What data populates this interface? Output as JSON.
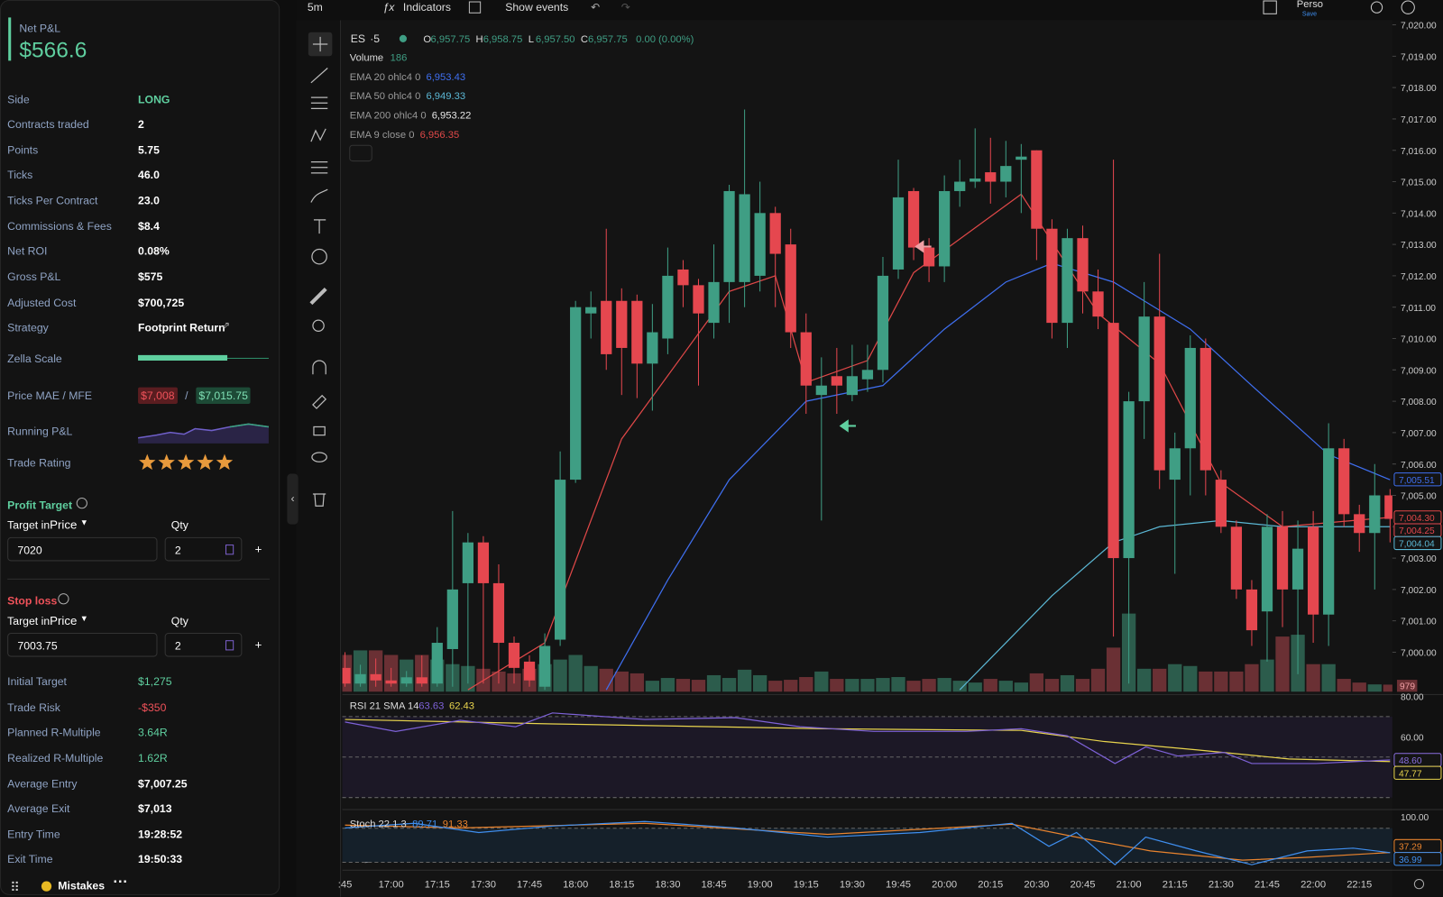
{
  "panel": {
    "net_pnl_label": "Net P&L",
    "net_pnl": "$566.6",
    "stats": [
      {
        "label": "Side",
        "value": "LONG",
        "color": "#5fcf9f"
      },
      {
        "label": "Contracts traded",
        "value": "2"
      },
      {
        "label": "Points",
        "value": "5.75"
      },
      {
        "label": "Ticks",
        "value": "46.0"
      },
      {
        "label": "Ticks Per Contract",
        "value": "23.0"
      },
      {
        "label": "Commissions & Fees",
        "value": "$8.4"
      },
      {
        "label": "Net ROI",
        "value": "0.08%"
      },
      {
        "label": "Gross P&L",
        "value": "$575"
      },
      {
        "label": "Adjusted Cost",
        "value": "$700,725"
      },
      {
        "label": "Strategy",
        "value": "Footprint Return"
      }
    ],
    "zella_scale": {
      "label": "Zella Scale",
      "score": 68
    },
    "mae_mfe": {
      "label": "Price MAE / MFE",
      "mae": "$7,008",
      "sep": "/",
      "mfe": "$7,015.75"
    },
    "running_pnl": {
      "label": "Running P&L"
    },
    "trade_rating": {
      "label": "Trade Rating",
      "stars": 5
    },
    "profit_target": {
      "title": "Profit Target",
      "mode_prefix": "Target in",
      "mode": "Price",
      "qty_label": "Qty",
      "price": "7020",
      "qty": "2",
      "color": "#5fcf9f"
    },
    "stop_loss": {
      "title": "Stop loss",
      "mode_prefix": "Target in",
      "mode": "Price",
      "qty_label": "Qty",
      "price": "7003.75",
      "qty": "2",
      "color": "#f0525a"
    },
    "results": [
      {
        "label": "Initial Target",
        "value": "$1,275",
        "color": "#5fcf9f"
      },
      {
        "label": "Trade Risk",
        "value": "-$350",
        "color": "#f0525a"
      },
      {
        "label": "Planned R-Multiple",
        "value": "3.64R",
        "color": "#5fcf9f"
      },
      {
        "label": "Realized R-Multiple",
        "value": "1.62R",
        "color": "#5fcf9f"
      },
      {
        "label": "Average Entry",
        "value": "$7,007.25"
      },
      {
        "label": "Average Exit",
        "value": "$7,013"
      },
      {
        "label": "Entry Time",
        "value": "19:28:52"
      },
      {
        "label": "Exit Time",
        "value": "19:50:33"
      }
    ],
    "footer": {
      "label": "Mistakes"
    }
  },
  "toolbar": {
    "interval": "5m",
    "indicators": "Indicators",
    "events": "Show events",
    "layout": "Perso",
    "save": "Save"
  },
  "legend": {
    "symbol": "ES",
    "interval": "·5",
    "ohlc": [
      {
        "k": "O",
        "v": "6,957.75"
      },
      {
        "k": "H",
        "v": "6,958.75"
      },
      {
        "k": "L",
        "v": "6,957.50"
      },
      {
        "k": "C",
        "v": "6,957.75"
      }
    ],
    "change": "0.00 (0.00%)",
    "volume_label": "Volume",
    "volume_value": "186"
  },
  "emas": [
    {
      "label": "EMA 20 ohlc4 0",
      "value": "6,953.43",
      "color": "#3f6ff0",
      "points": [
        [
          17,
          6998.8
        ],
        [
          21,
          7002.3
        ],
        [
          25,
          7005.5
        ],
        [
          30,
          7008.0
        ],
        [
          35,
          7008.5
        ],
        [
          39,
          7010.3
        ],
        [
          43,
          7011.8
        ],
        [
          46,
          7012.4
        ],
        [
          50,
          7011.8
        ],
        [
          55,
          7010.3
        ],
        [
          59,
          7008.5
        ],
        [
          64,
          7006.3
        ],
        [
          68,
          7005.5
        ]
      ]
    },
    {
      "label": "EMA 50 ohlc4 0",
      "value": "6,949.33",
      "color": "#5bb7d4",
      "points": [
        [
          40,
          6998.8
        ],
        [
          46,
          7001.8
        ],
        [
          50,
          7003.5
        ],
        [
          53,
          7004.0
        ],
        [
          57,
          7004.2
        ],
        [
          61,
          7004.0
        ],
        [
          68,
          7004.0
        ]
      ]
    },
    {
      "label": "EMA 200 ohlc4 0",
      "value": "6,953.22",
      "color": "#e8e8e8",
      "points": []
    },
    {
      "label": "EMA 9 close 0",
      "value": "6,956.35",
      "color": "#e04848",
      "points": [
        [
          8,
          6998.8
        ],
        [
          13,
          7000.3
        ],
        [
          18,
          7006.8
        ],
        [
          25,
          7011.5
        ],
        [
          28,
          7012.0
        ],
        [
          30,
          7008.6
        ],
        [
          34,
          7009.3
        ],
        [
          37,
          7012.1
        ],
        [
          44,
          7014.6
        ],
        [
          49,
          7010.8
        ],
        [
          53,
          7009.2
        ],
        [
          57,
          7005.4
        ],
        [
          61,
          7004.0
        ],
        [
          68,
          7004.3
        ]
      ]
    }
  ],
  "candles": [
    [
      6999.5,
      7000.0,
      6998.9,
      6999.0
    ],
    [
      6999.0,
      6999.6,
      6998.9,
      6999.3
    ],
    [
      6999.3,
      6999.8,
      6998.9,
      6999.1
    ],
    [
      6999.1,
      6999.5,
      6998.9,
      6999.0
    ],
    [
      6999.0,
      6999.4,
      6998.9,
      6999.2
    ],
    [
      6999.2,
      6999.9,
      6998.9,
      6999.0
    ],
    [
      6999.0,
      7000.8,
      6998.9,
      7000.3
    ],
    [
      7000.1,
      7004.5,
      6998.9,
      7002.0
    ],
    [
      7002.2,
      7003.8,
      6999.0,
      7003.5
    ],
    [
      7003.5,
      7003.7,
      6999.0,
      7002.2
    ],
    [
      7002.2,
      7002.8,
      6999.0,
      7000.3
    ],
    [
      7000.3,
      7000.5,
      6999.0,
      6999.5
    ],
    [
      6999.7,
      6999.9,
      6998.9,
      6999.1
    ],
    [
      6998.9,
      7000.6,
      6998.8,
      7000.2
    ],
    [
      7000.4,
      7006.4,
      7000.2,
      7005.5
    ],
    [
      7005.5,
      7011.2,
      7005.4,
      7011.0
    ],
    [
      7010.8,
      7011.5,
      7010.0,
      7011.0
    ],
    [
      7011.2,
      7013.5,
      7009.0,
      7009.5
    ],
    [
      7011.2,
      7011.6,
      7008.2,
      7009.7
    ],
    [
      7011.2,
      7011.4,
      7008.1,
      7009.2
    ],
    [
      7009.2,
      7011.1,
      7007.7,
      7010.2
    ],
    [
      7010.0,
      7012.9,
      7009.5,
      7012.0
    ],
    [
      7012.2,
      7012.5,
      7011.0,
      7011.7
    ],
    [
      7011.7,
      7011.9,
      7008.5,
      7010.8
    ],
    [
      7010.5,
      7013.0,
      7010.0,
      7011.8
    ],
    [
      7011.8,
      7014.9,
      7010.5,
      7014.7
    ],
    [
      7011.8,
      7017.3,
      7011.0,
      7014.6
    ],
    [
      7012.0,
      7015.0,
      7011.5,
      7014.0
    ],
    [
      7014.0,
      7014.2,
      7011.0,
      7012.7
    ],
    [
      7013.0,
      7013.5,
      7009.7,
      7010.2
    ],
    [
      7010.2,
      7010.8,
      7007.6,
      7008.5
    ],
    [
      7008.2,
      7009.4,
      7004.2,
      7008.5
    ],
    [
      7008.8,
      7009.7,
      7007.6,
      7008.5
    ],
    [
      7008.2,
      7009.8,
      7008.0,
      7008.8
    ],
    [
      7008.7,
      7009.8,
      7008.3,
      7009.0
    ],
    [
      7009.0,
      7012.6,
      7008.6,
      7012.0
    ],
    [
      7012.2,
      7015.7,
      7011.9,
      7014.5
    ],
    [
      7014.7,
      7014.8,
      7012.5,
      7012.9
    ],
    [
      7012.9,
      7013.2,
      7011.8,
      7012.3
    ],
    [
      7012.3,
      7015.2,
      7011.8,
      7014.7
    ],
    [
      7014.7,
      7015.7,
      7014.2,
      7015.0
    ],
    [
      7015.0,
      7016.7,
      7014.8,
      7015.1
    ],
    [
      7015.3,
      7016.4,
      7014.3,
      7015.0
    ],
    [
      7015.0,
      7016.3,
      7014.5,
      7015.5
    ],
    [
      7015.7,
      7016.2,
      7014.0,
      7015.8
    ],
    [
      7016.0,
      7016.0,
      7012.5,
      7013.5
    ],
    [
      7013.5,
      7013.8,
      7010.0,
      7010.5
    ],
    [
      7010.5,
      7013.5,
      7009.7,
      7013.2
    ],
    [
      7013.2,
      7013.6,
      7010.8,
      7011.5
    ],
    [
      7011.5,
      7012.2,
      7010.3,
      7010.7
    ],
    [
      7010.5,
      7015.7,
      7000.5,
      7003.0
    ],
    [
      7003.0,
      7008.3,
      6999.0,
      7008.0
    ],
    [
      7008.0,
      7011.8,
      7006.8,
      7010.7
    ],
    [
      7010.7,
      7012.7,
      7005.2,
      7005.8
    ],
    [
      7005.5,
      7007.0,
      7002.5,
      7006.5
    ],
    [
      7006.5,
      7010.1,
      7005.0,
      7009.7
    ],
    [
      7009.7,
      7010.0,
      7005.0,
      7005.8
    ],
    [
      7005.5,
      7005.8,
      7003.8,
      7004.0
    ],
    [
      7004.0,
      7004.2,
      7001.7,
      7002.0
    ],
    [
      7002.0,
      7002.3,
      7000.2,
      7000.7
    ],
    [
      7001.3,
      7004.4,
      6999.7,
      7004.0
    ],
    [
      7004.0,
      7004.5,
      7000.8,
      7002.0
    ],
    [
      7002.0,
      7004.2,
      6999.3,
      7003.3
    ],
    [
      7004.0,
      7004.5,
      7000.3,
      7001.2
    ],
    [
      7001.2,
      7007.3,
      7000.2,
      7006.5
    ],
    [
      7006.5,
      7006.8,
      7004.0,
      7004.4
    ],
    [
      7004.4,
      7004.7,
      7003.2,
      7003.8
    ],
    [
      7003.8,
      7006.0,
      7002.0,
      7005.0
    ],
    [
      7005.0,
      7005.2,
      7003.5,
      7004.25
    ]
  ],
  "volumes": [
    960,
    1080,
    1080,
    960,
    840,
    960,
    840,
    720,
    672,
    600,
    528,
    480,
    600,
    720,
    840,
    960,
    672,
    600,
    528,
    480,
    288,
    360,
    336,
    312,
    432,
    360,
    576,
    432,
    288,
    312,
    384,
    528,
    336,
    336,
    336,
    360,
    384,
    288,
    336,
    360,
    288,
    240,
    336,
    288,
    240,
    480,
    336,
    432,
    336,
    600,
    1152,
    2040,
    600,
    600,
    720,
    672,
    528,
    528,
    528,
    720,
    840,
    1440,
    1488,
    720,
    720,
    336,
    240,
    192,
    186
  ],
  "price_ticks": [
    {
      "value": 7020,
      "label": "7,020.00"
    },
    {
      "value": 7019,
      "label": "7,019.00"
    },
    {
      "value": 7018,
      "label": "7,018.00"
    },
    {
      "value": 7017,
      "label": "7,017.00"
    },
    {
      "value": 7016,
      "label": "7,016.00"
    },
    {
      "value": 7015,
      "label": "7,015.00"
    },
    {
      "value": 7014,
      "label": "7,014.00"
    },
    {
      "value": 7013,
      "label": "7,013.00"
    },
    {
      "value": 7012,
      "label": "7,012.00"
    },
    {
      "value": 7011,
      "label": "7,011.00"
    },
    {
      "value": 7010,
      "label": "7,010.00"
    },
    {
      "value": 7009,
      "label": "7,009.00"
    },
    {
      "value": 7008,
      "label": "7,008.00"
    },
    {
      "value": 7007,
      "label": "7,007.00"
    },
    {
      "value": 7006,
      "label": "7,006.00"
    },
    {
      "value": 7005,
      "label": "7,005.00"
    },
    {
      "value": 7004,
      "label": "7,004.00"
    },
    {
      "value": 7003,
      "label": "7,003.00"
    },
    {
      "value": 7002,
      "label": "7,002.00"
    },
    {
      "value": 7001,
      "label": "7,001.00"
    },
    {
      "value": 7000,
      "label": "7,000.00"
    }
  ],
  "price_markers": [
    {
      "value": 7005.51,
      "label": "7,005.51",
      "color": "#3f6ff0"
    },
    {
      "value": 7004.3,
      "label": "7,004.30",
      "color": "#e04848"
    },
    {
      "value": 7004.25,
      "label": "7,004.25",
      "color": "#e5474f"
    },
    {
      "value": 7004.04,
      "label": "7,004.04",
      "color": "#5bb7d4"
    }
  ],
  "volume_marker": "979",
  "time_labels": [
    ":45",
    "17:00",
    "17:15",
    "17:30",
    "17:45",
    "18:00",
    "18:15",
    "18:30",
    "18:45",
    "19:00",
    "19:15",
    "19:30",
    "19:45",
    "20:00",
    "20:15",
    "20:30",
    "20:45",
    "21:00",
    "21:15",
    "21:30",
    "21:45",
    "22:00",
    "22:15"
  ],
  "rsi": {
    "label": "RSI 21 SMA 14",
    "value": "63.63",
    "sma_value": "62.43",
    "ticks": [
      {
        "value": 80,
        "label": "80.00"
      },
      {
        "value": 60,
        "label": "60.00"
      }
    ],
    "bands": [
      70,
      50,
      30
    ],
    "line": [
      [
        0,
        67.3
      ],
      [
        3.3,
        62.7
      ],
      [
        7.5,
        68.2
      ],
      [
        11.1,
        65
      ],
      [
        13.5,
        71.8
      ],
      [
        19.5,
        68.6
      ],
      [
        25.4,
        69.5
      ],
      [
        29.6,
        65
      ],
      [
        34.4,
        62.7
      ],
      [
        40.4,
        62.7
      ],
      [
        44,
        64
      ],
      [
        47,
        60.5
      ],
      [
        50.1,
        46.8
      ],
      [
        52.1,
        55
      ],
      [
        54.2,
        50.5
      ],
      [
        57.2,
        52.3
      ],
      [
        59,
        46.8
      ],
      [
        63.2,
        46.8
      ],
      [
        68,
        48.6
      ]
    ],
    "sma": [
      [
        0,
        68.6
      ],
      [
        13.5,
        66.4
      ],
      [
        31.4,
        64
      ],
      [
        44,
        63.2
      ],
      [
        49.4,
        57.7
      ],
      [
        55.4,
        53.6
      ],
      [
        61.4,
        49.1
      ],
      [
        68,
        47.77
      ]
    ],
    "markers": [
      {
        "value": 48.6,
        "label": "48.60",
        "color": "#8a6fe0"
      },
      {
        "value": 47.77,
        "label": "47.77",
        "color": "#e8d44d"
      }
    ]
  },
  "stoch": {
    "label": "Stoch 22 1 3",
    "value": "89.71",
    "d_value": "91.33",
    "ticks": [
      {
        "value": 100,
        "label": "100.00"
      }
    ],
    "bands": [
      80,
      20
    ],
    "k": [
      [
        0,
        80.5
      ],
      [
        4.5,
        88.7
      ],
      [
        8.7,
        72.5
      ],
      [
        13.5,
        83.8
      ],
      [
        19.5,
        91.9
      ],
      [
        25.4,
        80.5
      ],
      [
        31.4,
        64.3
      ],
      [
        37.4,
        72.5
      ],
      [
        43.4,
        88.7
      ],
      [
        45.8,
        48.1
      ],
      [
        47.6,
        72.5
      ],
      [
        50.1,
        15.7
      ],
      [
        52.1,
        64.3
      ],
      [
        55.4,
        40
      ],
      [
        59,
        15.7
      ],
      [
        62.6,
        40
      ],
      [
        65.6,
        44.9
      ],
      [
        68,
        36.99
      ]
    ],
    "d": [
      [
        0,
        85.4
      ],
      [
        7.5,
        80.5
      ],
      [
        19.5,
        88.7
      ],
      [
        31.4,
        69.2
      ],
      [
        43.4,
        87
      ],
      [
        48.2,
        61.1
      ],
      [
        52.4,
        40
      ],
      [
        58.4,
        23.8
      ],
      [
        62.6,
        28.7
      ],
      [
        68,
        37.29
      ]
    ],
    "markers": [
      {
        "value": 37.29,
        "label": "37.29",
        "color": "#e8832e"
      },
      {
        "value": 36.99,
        "label": "36.99",
        "color": "#3f8ff0"
      }
    ]
  }
}
